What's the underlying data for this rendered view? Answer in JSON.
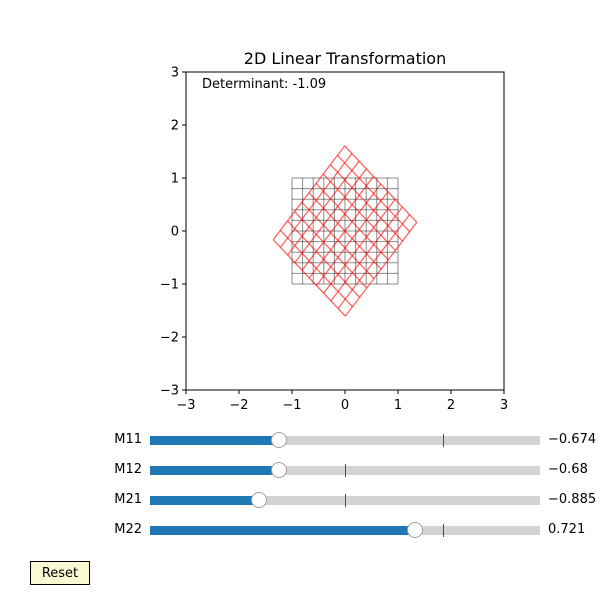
{
  "chart_data": {
    "type": "line",
    "title": "2D Linear Transformation",
    "xlabel": "",
    "ylabel": "",
    "xlim": [
      -3,
      3
    ],
    "ylim": [
      -3,
      3
    ],
    "xticks": [
      "−3",
      "−2",
      "−1",
      "0",
      "1",
      "2",
      "3"
    ],
    "yticks": [
      "−3",
      "−2",
      "−1",
      "0",
      "1",
      "2",
      "3"
    ],
    "annotation": "Determinant: -1.09",
    "grid": true,
    "original_grid": {
      "range": [
        -1,
        1
      ],
      "lines": 11,
      "color": "#000000"
    },
    "transformed_grid": {
      "range": [
        -1,
        1
      ],
      "lines": 11,
      "color": "#ff0000"
    },
    "matrix": [
      [
        -0.674,
        -0.68
      ],
      [
        -0.885,
        0.721
      ]
    ]
  },
  "sliders": [
    {
      "label": "M11",
      "value": -0.674,
      "display": "−0.674",
      "min": -2,
      "max": 2,
      "init": 1
    },
    {
      "label": "M12",
      "value": -0.68,
      "display": "−0.68",
      "min": -2,
      "max": 2,
      "init": 0
    },
    {
      "label": "M21",
      "value": -0.885,
      "display": "−0.885",
      "min": -2,
      "max": 2,
      "init": 0
    },
    {
      "label": "M22",
      "value": 0.721,
      "display": "0.721",
      "min": -2,
      "max": 2,
      "init": 1
    }
  ],
  "colors": {
    "slider_fill": "#1f77b4",
    "slider_track": "#d3d3d3",
    "init_marker": "#ff0000",
    "reset_bg": "#fafad2"
  },
  "reset": {
    "label": "Reset"
  }
}
